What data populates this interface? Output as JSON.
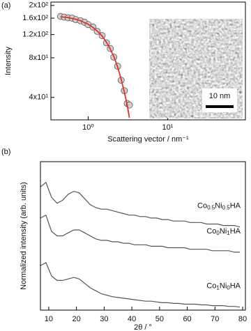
{
  "chart_data": [
    {
      "type": "scatter",
      "label": "(a)",
      "x_label": "Scattering vector / nm⁻¹",
      "y_label": "Intensity",
      "xlog": true,
      "ylog": true,
      "xlim": [
        0.34,
        95
      ],
      "ylim": [
        27,
        212
      ],
      "xticks": [
        {
          "value": 1,
          "label": "10⁰"
        },
        {
          "value": 10,
          "label": "10¹"
        }
      ],
      "yticks": [
        {
          "value": 40,
          "label": "4x10¹"
        },
        {
          "value": 80,
          "label": "8x10¹"
        },
        {
          "value": 120,
          "label": "1.2x10²"
        },
        {
          "value": 160,
          "label": "1.6x10²"
        },
        {
          "value": 200,
          "label": "2x10²"
        }
      ],
      "x": [
        0.45,
        0.5,
        0.56,
        0.63,
        0.7,
        0.8,
        0.9,
        1.0,
        1.15,
        1.3,
        1.5,
        1.7,
        1.9,
        2.1,
        2.35,
        2.6,
        2.85,
        3.1,
        3.3
      ],
      "series": [
        {
          "kind": "scatter",
          "color": "#d0d0d0",
          "values": [
            165,
            163,
            161,
            160,
            156,
            153,
            149,
            143,
            137,
            127,
            118,
            104,
            94,
            81,
            69,
            54,
            45,
            36,
            35
          ]
        },
        {
          "kind": "line",
          "color": "#e03030",
          "values": [
            164,
            163,
            162,
            159,
            157,
            153,
            148,
            144,
            136,
            128,
            117,
            105,
            93,
            82,
            68,
            55,
            44,
            35,
            28
          ]
        }
      ],
      "annotation": "10 nm"
    },
    {
      "type": "line",
      "label": "(b)",
      "x_label": "2θ / °",
      "y_label": "Normalized intensity (arb. units)",
      "xlim": [
        7,
        81
      ],
      "ylim": [
        0,
        10
      ],
      "xticks": [
        10,
        20,
        30,
        40,
        50,
        60,
        70,
        80
      ],
      "x": [
        7,
        9,
        11,
        13,
        15,
        17,
        19,
        21,
        23,
        25,
        27,
        29,
        31,
        33,
        35,
        37,
        39,
        41,
        43,
        45,
        47,
        49,
        51,
        53,
        55,
        57,
        59,
        61,
        63,
        65,
        67,
        69,
        71,
        73,
        75,
        77,
        79
      ],
      "series": [
        {
          "name": "Co0.5Ni0.5HA",
          "color": "#555555",
          "values": [
            8.3,
            8.6,
            7.6,
            7.2,
            7.4,
            7.8,
            8.0,
            7.9,
            7.5,
            7.1,
            6.9,
            6.8,
            6.8,
            6.7,
            6.6,
            6.5,
            6.4,
            6.4,
            6.3,
            6.3,
            6.2,
            6.2,
            6.1,
            6.1,
            6.0,
            6.0,
            6.0,
            5.9,
            5.9,
            5.9,
            5.8,
            5.8,
            5.8,
            5.7,
            5.7,
            5.7,
            5.6
          ]
        },
        {
          "name": "Co0Ni1HA",
          "color": "#555555",
          "values": [
            6.2,
            6.4,
            5.3,
            5.0,
            5.0,
            5.2,
            5.4,
            5.4,
            5.2,
            5.0,
            4.8,
            4.7,
            4.7,
            4.6,
            4.6,
            4.5,
            4.5,
            4.4,
            4.4,
            4.4,
            4.3,
            4.3,
            4.3,
            4.2,
            4.2,
            4.2,
            4.2,
            4.1,
            4.1,
            4.1,
            4.1,
            4.0,
            4.0,
            4.0,
            4.0,
            3.9,
            3.9
          ]
        },
        {
          "name": "Co1Ni0HA",
          "color": "#555555",
          "values": [
            3.0,
            3.2,
            2.3,
            2.0,
            2.0,
            2.1,
            2.2,
            2.1,
            1.8,
            1.5,
            1.3,
            1.1,
            1.0,
            0.9,
            0.85,
            0.8,
            0.75,
            0.7,
            0.65,
            0.6,
            0.6,
            0.55,
            0.5,
            0.5,
            0.45,
            0.45,
            0.4,
            0.4,
            0.4,
            0.35,
            0.35,
            0.3,
            0.3,
            0.3,
            0.25,
            0.25,
            0.2
          ]
        }
      ]
    }
  ]
}
